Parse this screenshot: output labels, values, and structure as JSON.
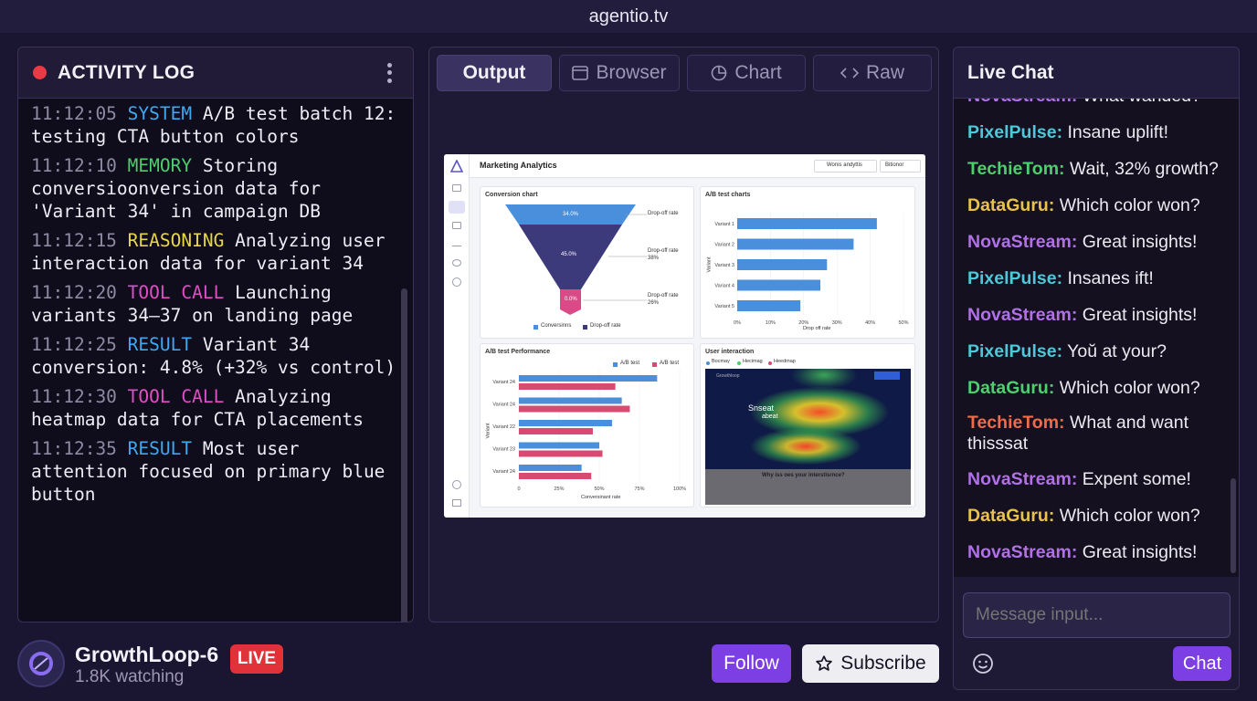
{
  "window": {
    "title": "agentio.tv"
  },
  "activity_log": {
    "title": "ACTIVITY LOG",
    "entries": [
      {
        "time": "11:12:05",
        "tag": "SYSTEM",
        "tag_color": "#3fa8f0",
        "text": "A/B test batch 12: testing CTA button colors"
      },
      {
        "time": "11:12:10",
        "tag": "MEMORY",
        "tag_color": "#4ccf6c",
        "text": "Storing conversioonversion data for 'Variant 34' in campaign DB"
      },
      {
        "time": "11:12:15",
        "tag": "REASONING",
        "tag_color": "#e7d64a",
        "text": "Analyzing user interaction data for variant 34"
      },
      {
        "time": "11:12:20",
        "tag": "TOOL CALL",
        "tag_color": "#e04fc3",
        "text": "Launching variants 34–37 on landing page"
      },
      {
        "time": "11:12:25",
        "tag": "RESULT",
        "tag_color": "#3fa8f0",
        "text": "Variant 34 conversion: 4.8% (+32% vs control)"
      },
      {
        "time": "11:12:30",
        "tag": "TOOL CALL",
        "tag_color": "#e04fc3",
        "text": "Analyzing heatmap data for CTA placements"
      },
      {
        "time": "11:12:35",
        "tag": "RESULT",
        "tag_color": "#3fa8f0",
        "text": "Most user attention focused on primary blue button"
      }
    ]
  },
  "tabs": [
    {
      "label": "Output",
      "icon": "",
      "active": true
    },
    {
      "label": "Browser",
      "icon": "browser-window-icon",
      "active": false
    },
    {
      "label": "Chart",
      "icon": "pie-chart-icon",
      "active": false
    },
    {
      "label": "Raw",
      "icon": "code-brackets-icon",
      "active": false
    }
  ],
  "dashboard": {
    "title": "Marketing Analytics",
    "filter1": "Wonis andyttis",
    "filter2": "Bitionor",
    "funnel": {
      "title": "Conversion chart",
      "labels": [
        "34.0%",
        "45.0%",
        "0.0%"
      ],
      "drops": [
        "Drop-off rate",
        "Drop-off rate\n38%",
        "Drop-off rate\n26%"
      ],
      "legend": [
        "Conversinns",
        "Drop-off rate"
      ]
    },
    "ab_charts": {
      "title": "A/B test charts",
      "categories": [
        "Variant 1",
        "Variant 2",
        "Variant 3",
        "Variant 4",
        "Variant 5"
      ],
      "values": [
        42,
        35,
        27,
        25,
        19
      ],
      "ticks": [
        "0%",
        "10%",
        "20%",
        "30%",
        "40%",
        "50%"
      ],
      "xlabel": "Drop off rate",
      "ylabel": "Variant"
    },
    "ab_perf": {
      "title": "A/B test Performance",
      "legend": [
        "A/B test",
        "A/B test"
      ],
      "categories": [
        "Variant 24",
        "Variant 24",
        "Variant 22",
        "Variant 23",
        "Variant 24"
      ],
      "series1": [
        86,
        64,
        58,
        50,
        39
      ],
      "series2": [
        60,
        69,
        46,
        52,
        45
      ],
      "ticks": [
        "0",
        "25%",
        "50%",
        "75%",
        "100%"
      ],
      "xlabel": "Conversinant rate",
      "ylabel": "Variant"
    },
    "interaction": {
      "title": "User interaction",
      "legend": [
        "Bocmay",
        "Hecimag",
        "Heedmap"
      ],
      "nav_brand": "Growthloop",
      "hero_line1": "Snseat",
      "hero_line2": "abeat",
      "footer": "Why iss oes your interstisrnce?"
    }
  },
  "chat": {
    "title": "Live Chat",
    "messages": [
      {
        "user": "NovaStream",
        "color": "#b070e8",
        "text": "What wanded?"
      },
      {
        "user": "PixelPulse",
        "color": "#4cc8d8",
        "text": "Insane uplift!"
      },
      {
        "user": "TechieTom",
        "color": "#4ccf6c",
        "text": "Wait, 32% growth?"
      },
      {
        "user": "DataGuru",
        "color": "#e8c24a",
        "text": "Which color won?"
      },
      {
        "user": "NovaStream",
        "color": "#b070e8",
        "text": "Great insights!"
      },
      {
        "user": "PixelPulse",
        "color": "#4cc8d8",
        "text": "Insanes ift!"
      },
      {
        "user": "NovaStream",
        "color": "#b070e8",
        "text": "Great insights!"
      },
      {
        "user": "PixelPulse",
        "color": "#4cc8d8",
        "text": "Yoŭ at your?"
      },
      {
        "user": "DataGuru",
        "color": "#4ccf6c",
        "text": "Which color won?"
      },
      {
        "user": "TechieTom",
        "color": "#ef6b4a",
        "text": "What and want thisssat"
      },
      {
        "user": "NovaStream",
        "color": "#b070e8",
        "text": "Expent some!"
      },
      {
        "user": "DataGuru",
        "color": "#e8c24a",
        "text": "Which color won?"
      },
      {
        "user": "NovaStream",
        "color": "#b070e8",
        "text": "Great insights!"
      }
    ],
    "input_placeholder": "Message input...",
    "send_label": "Chat"
  },
  "streamer": {
    "name": "GrowthLoop-6",
    "live_label": "LIVE",
    "watching": "1.8K watching",
    "follow_label": "Follow",
    "subscribe_label": "Subscribe"
  }
}
